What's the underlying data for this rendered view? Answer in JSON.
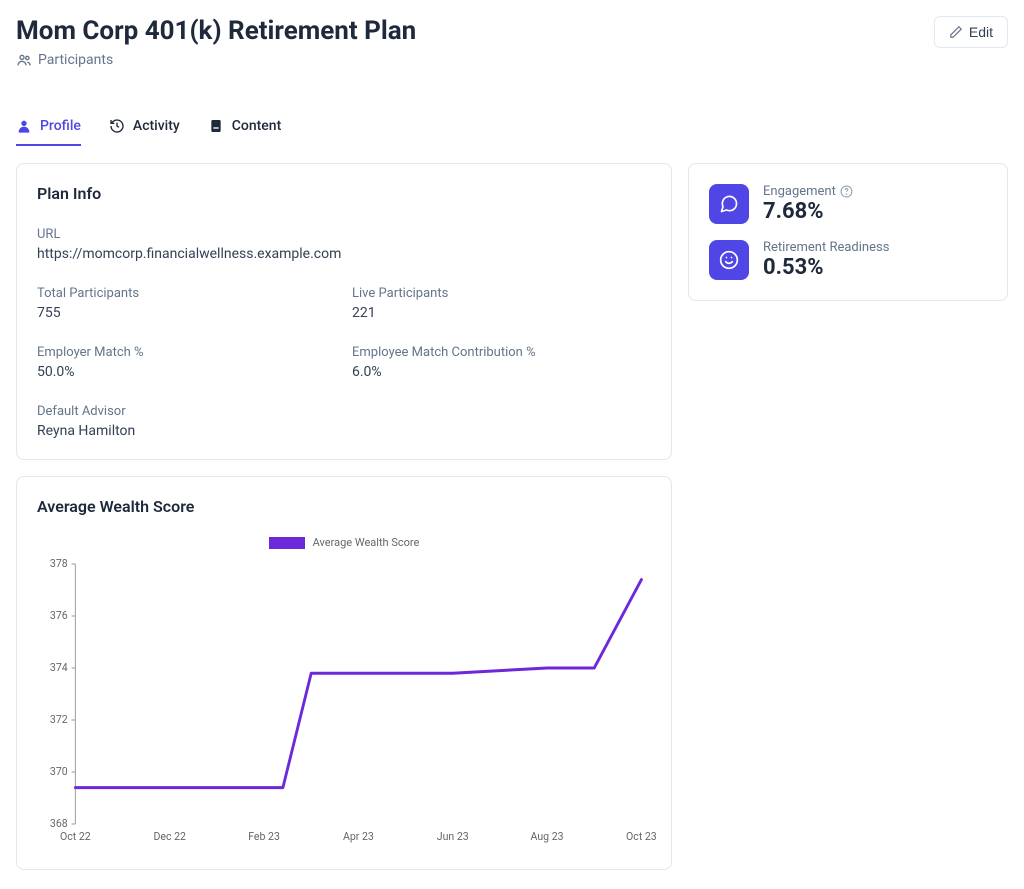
{
  "header": {
    "title": "Mom Corp 401(k) Retirement Plan",
    "breadcrumb": "Participants",
    "edit_label": "Edit"
  },
  "tabs": {
    "profile": "Profile",
    "activity": "Activity",
    "content": "Content"
  },
  "plan_info": {
    "card_title": "Plan Info",
    "url_label": "URL",
    "url_value": "https://momcorp.financialwellness.example.com",
    "total_participants_label": "Total Participants",
    "total_participants_value": "755",
    "live_participants_label": "Live Participants",
    "live_participants_value": "221",
    "employer_match_label": "Employer Match %",
    "employer_match_value": "50.0%",
    "employee_contribution_label": "Employee Match Contribution %",
    "employee_contribution_value": "6.0%",
    "default_advisor_label": "Default Advisor",
    "default_advisor_value": "Reyna Hamilton"
  },
  "metrics": {
    "engagement_label": "Engagement",
    "engagement_value": "7.68%",
    "retirement_readiness_label": "Retirement Readiness",
    "retirement_readiness_value": "0.53%"
  },
  "chart": {
    "title": "Average Wealth Score",
    "type": "line",
    "legend_label": "Average Wealth Score",
    "line_color": "#6d28d9",
    "line_width": 3,
    "background_color": "#ffffff",
    "axis_color": "#999999",
    "tick_color": "#666666",
    "label_fontsize": 11,
    "x_labels": [
      "Oct 22",
      "Dec 22",
      "Feb 23",
      "Apr 23",
      "Jun 23",
      "Aug 23",
      "Oct 23"
    ],
    "x_positions": [
      0,
      2,
      4,
      6,
      8,
      10,
      12
    ],
    "ylim": [
      368,
      378
    ],
    "ytick_step": 2,
    "data": {
      "x": [
        0,
        1,
        2,
        3,
        4,
        4.4,
        5,
        6,
        7,
        8,
        9,
        10,
        10.5,
        11,
        12
      ],
      "y": [
        369.4,
        369.4,
        369.4,
        369.4,
        369.4,
        369.4,
        373.8,
        373.8,
        373.8,
        373.8,
        373.9,
        374.0,
        374.0,
        374.0,
        377.4
      ]
    }
  },
  "colors": {
    "primary": "#4f46e5",
    "text": "#1e293b",
    "muted": "#64748b",
    "border": "#e2e8f0"
  }
}
